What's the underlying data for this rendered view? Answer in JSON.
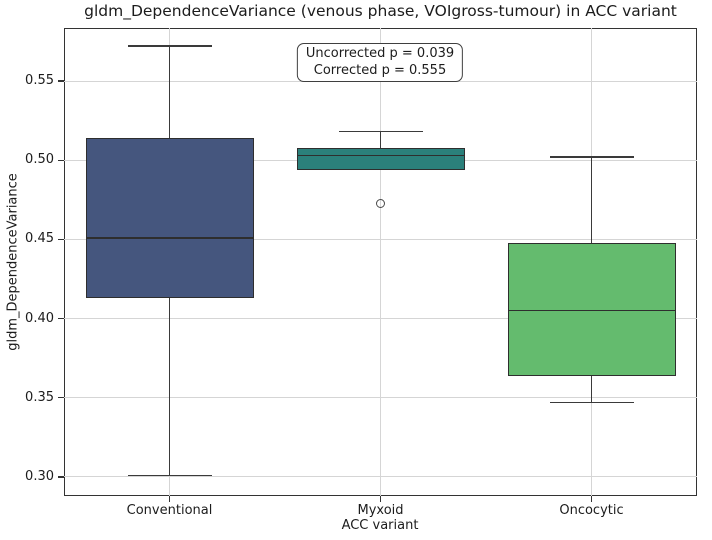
{
  "chart_data": {
    "type": "boxplot",
    "title": "gldm_DependenceVariance (venous phase, VOIgross-tumour) in ACC variant",
    "xlabel": "ACC variant",
    "ylabel": "gldm_DependenceVariance",
    "categories": [
      "Conventional",
      "Myxoid",
      "Oncocytic"
    ],
    "yticks": [
      0.3,
      0.35,
      0.4,
      0.45,
      0.5,
      0.55
    ],
    "ylim": [
      0.288,
      0.5835
    ],
    "grid": true,
    "legend": false,
    "annotation": [
      "Uncorrected p = 0.039",
      "Corrected p = 0.555"
    ],
    "boxes": [
      {
        "category": "Conventional",
        "whislo": 0.301,
        "q1": 0.413,
        "med": 0.451,
        "q3": 0.514,
        "whishi": 0.572,
        "fliers": [],
        "color": "#45567E"
      },
      {
        "category": "Myxoid",
        "whislo": 0.494,
        "q1": 0.494,
        "med": 0.503,
        "q3": 0.508,
        "whishi": 0.518,
        "fliers": [
          0.473
        ],
        "color": "#2B807B"
      },
      {
        "category": "Oncocytic",
        "whislo": 0.347,
        "q1": 0.364,
        "med": 0.405,
        "q3": 0.448,
        "whishi": 0.502,
        "fliers": [],
        "color": "#64BB6E"
      }
    ],
    "colors": {
      "box_edge": "#2E2E2E",
      "whisker": "#3A3A3A",
      "flier_edge": "#4A4A4A",
      "grid": "#D5D5D5",
      "spine": "#333333",
      "text": "#1C1C1C",
      "background": "#FFFFFF"
    }
  }
}
